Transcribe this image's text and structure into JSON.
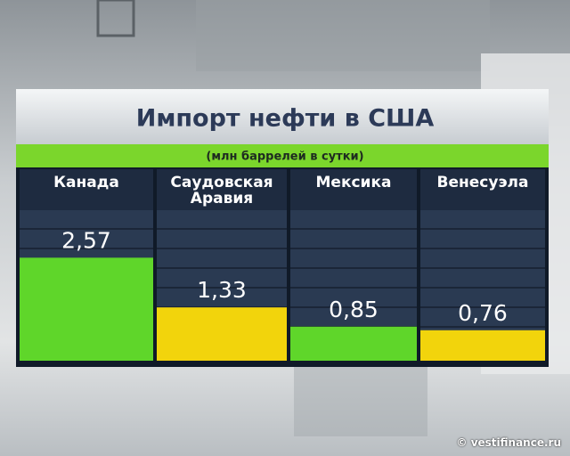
{
  "chart_data": {
    "type": "bar",
    "title": "Импорт нефти в США",
    "subtitle": "(млн баррелей в сутки)",
    "categories": [
      "Канада",
      "Саудовская Аравия",
      "Мексика",
      "Венесуэла"
    ],
    "values": [
      2.57,
      1.33,
      0.85,
      0.76
    ],
    "value_labels": [
      "2,57",
      "1,33",
      "0,85",
      "0,76"
    ],
    "colors": [
      "#5fd62a",
      "#f2d40c",
      "#5fd62a",
      "#f2d40c"
    ],
    "source": "© vestifinance.ru"
  }
}
